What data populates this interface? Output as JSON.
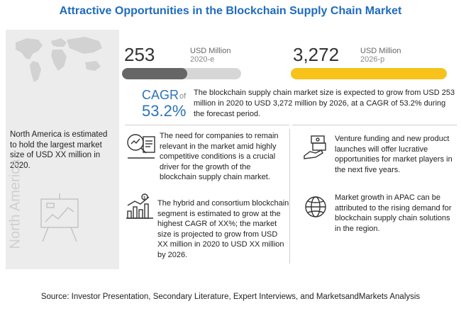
{
  "title": "Attractive Opportunities in the Blockchain Supply Chain Market",
  "left": {
    "region_text": "North America is estimated to hold the largest market size of USD XX million in 2020.",
    "vertical_label": "North America"
  },
  "metrics": [
    {
      "value": "253",
      "unit": "USD Million",
      "year": "2020-e",
      "fill_fraction": 0.55,
      "color": "#666666"
    },
    {
      "value": "3,272",
      "unit": "USD Million",
      "year": "2026-p",
      "fill_fraction": 1.0,
      "color": "#f7c21a"
    }
  ],
  "cagr": {
    "label": "CAGR",
    "of": "of",
    "value": "53.2%",
    "text": "The blockchain supply chain market size is expected to grow from USD 253 million in 2020 to USD 3,272 million by 2026, at a CAGR of 53.2% during the forecast period."
  },
  "insights": [
    {
      "icon": "analysis-icon",
      "text": "The need for companies to remain relevant in the market amid highly competitive conditions is a crucial driver for the growth of the blockchain supply chain market."
    },
    {
      "icon": "growth-chart-icon",
      "text": "The hybrid and consortium blockchain segment is estimated to grow at the highest CAGR of XX%; the market size is projected to grow from USD XX million in 2020 to USD XX million by 2026."
    },
    {
      "icon": "funding-icon",
      "text": "Venture funding and new product launches will offer lucrative opportunities for market players in the next five years."
    },
    {
      "icon": "globe-icon",
      "text": "Market growth in APAC can be attributed to the rising demand for blockchain supply chain solutions in the region."
    }
  ],
  "source": "Source: Investor Presentation, Secondary Literature, Expert Interviews, and MarketsandMarkets Analysis",
  "colors": {
    "title": "#1f6bbd",
    "accent_blue": "#2a73b8",
    "yellow": "#f7c21a",
    "grey_bar": "#666666"
  }
}
